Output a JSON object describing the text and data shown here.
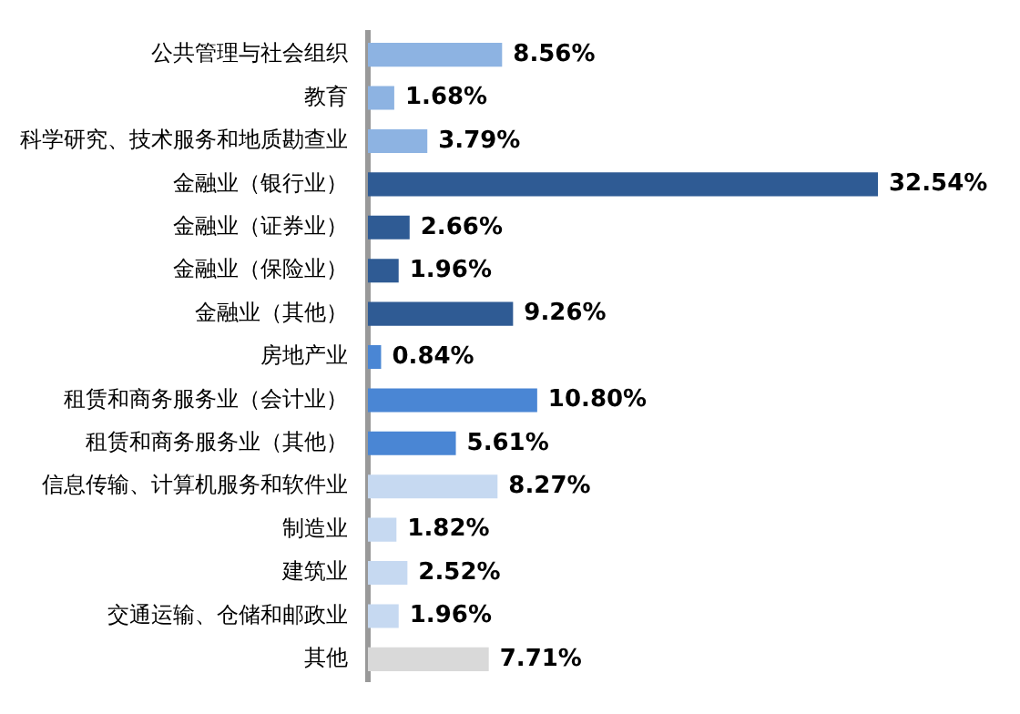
{
  "chart_data": {
    "type": "bar",
    "orientation": "horizontal",
    "categories": [
      "公共管理与社会组织",
      "教育",
      "科学研究、技术服务和地质勘查业",
      "金融业（银行业）",
      "金融业（证券业）",
      "金融业（保险业）",
      "金融业（其他）",
      "房地产业",
      "租赁和商务服务业（会计业）",
      "租赁和商务服务业（其他）",
      "信息传输、计算机服务和软件业",
      "制造业",
      "建筑业",
      "交通运输、仓储和邮政业",
      "其他"
    ],
    "values": [
      8.56,
      1.68,
      3.79,
      32.54,
      2.66,
      1.96,
      9.26,
      0.84,
      10.8,
      5.61,
      8.27,
      1.82,
      2.52,
      1.96,
      7.71
    ],
    "value_labels": [
      "8.56%",
      "1.68%",
      "3.79%",
      "32.54%",
      "2.66%",
      "1.96%",
      "9.26%",
      "0.84%",
      "10.80%",
      "5.61%",
      "8.27%",
      "1.82%",
      "2.52%",
      "1.96%",
      "7.71%"
    ],
    "colors": [
      "#8db3e2",
      "#8db3e2",
      "#8db3e2",
      "#2f5b94",
      "#2f5b94",
      "#2f5b94",
      "#2f5b94",
      "#4a86d4",
      "#4a86d4",
      "#4a86d4",
      "#c6d9f1",
      "#c6d9f1",
      "#c6d9f1",
      "#c6d9f1",
      "#d9d9d9"
    ],
    "tick_labels": "y"
  }
}
